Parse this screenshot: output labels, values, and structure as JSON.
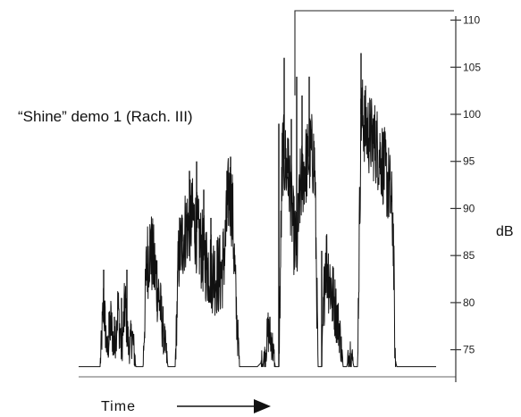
{
  "chart_data": {
    "type": "line",
    "title": "“Shine” demo 1 (Rach. III)",
    "xlabel": "Time",
    "ylabel": "dB",
    "ylim": [
      72.5,
      111
    ],
    "y_axis_position": "right",
    "grid": false,
    "y_ticks": [
      75,
      80,
      85,
      90,
      95,
      100,
      105,
      110
    ],
    "y_tick_labels": [
      "75",
      "80",
      "85",
      "90",
      "95",
      "100",
      "105",
      "110"
    ],
    "series": [
      {
        "envelope": [
          [
            0.0,
            73.2
          ],
          [
            0.06,
            73.2
          ],
          [
            0.07,
            80.0
          ],
          [
            0.08,
            74.5
          ],
          [
            0.09,
            78.0
          ],
          [
            0.1,
            75.0
          ],
          [
            0.11,
            79.5
          ],
          [
            0.12,
            74.8
          ],
          [
            0.13,
            80.0
          ],
          [
            0.14,
            75.2
          ],
          [
            0.15,
            76.5
          ],
          [
            0.16,
            73.2
          ],
          [
            0.18,
            73.2
          ],
          [
            0.19,
            84.0
          ],
          [
            0.2,
            86.0
          ],
          [
            0.22,
            82.0
          ],
          [
            0.24,
            76.0
          ],
          [
            0.25,
            73.2
          ],
          [
            0.27,
            73.2
          ],
          [
            0.28,
            85.0
          ],
          [
            0.3,
            88.0
          ],
          [
            0.32,
            89.0
          ],
          [
            0.34,
            86.0
          ],
          [
            0.36,
            84.0
          ],
          [
            0.38,
            83.0
          ],
          [
            0.4,
            83.0
          ],
          [
            0.41,
            86.0
          ],
          [
            0.42,
            92.0
          ],
          [
            0.43,
            90.0
          ],
          [
            0.44,
            80.0
          ],
          [
            0.45,
            73.2
          ],
          [
            0.5,
            73.2
          ],
          [
            0.52,
            74.0
          ],
          [
            0.53,
            77.0
          ],
          [
            0.54,
            76.0
          ],
          [
            0.55,
            73.2
          ],
          [
            0.56,
            73.2
          ],
          [
            0.57,
            96.0
          ],
          [
            0.59,
            93.0
          ],
          [
            0.6,
            88.0
          ],
          [
            0.61,
            85.0
          ],
          [
            0.62,
            92.0
          ],
          [
            0.63,
            94.0
          ],
          [
            0.64,
            95.0
          ],
          [
            0.65,
            96.0
          ],
          [
            0.66,
            95.0
          ],
          [
            0.67,
            73.2
          ],
          [
            0.68,
            73.2
          ],
          [
            0.69,
            85.0
          ],
          [
            0.71,
            81.0
          ],
          [
            0.73,
            77.0
          ],
          [
            0.74,
            73.2
          ],
          [
            0.75,
            73.2
          ],
          [
            0.76,
            75.0
          ],
          [
            0.77,
            73.2
          ],
          [
            0.78,
            73.2
          ],
          [
            0.79,
            100.0
          ],
          [
            0.81,
            98.0
          ],
          [
            0.83,
            97.0
          ],
          [
            0.85,
            95.0
          ],
          [
            0.87,
            92.0
          ],
          [
            0.88,
            88.0
          ],
          [
            0.885,
            74.0
          ],
          [
            0.89,
            73.2
          ],
          [
            0.97,
            73.2
          ],
          [
            1.0,
            73.2
          ]
        ],
        "spikes": [
          [
            0.07,
            83.5
          ],
          [
            0.085,
            79.0
          ],
          [
            0.1,
            78.5
          ],
          [
            0.12,
            80.5
          ],
          [
            0.135,
            83.5
          ],
          [
            0.15,
            77.0
          ],
          [
            0.195,
            85.0
          ],
          [
            0.21,
            84.5
          ],
          [
            0.29,
            89.0
          ],
          [
            0.31,
            94.0
          ],
          [
            0.33,
            95.0
          ],
          [
            0.35,
            92.0
          ],
          [
            0.37,
            89.0
          ],
          [
            0.415,
            94.0
          ],
          [
            0.425,
            95.5
          ],
          [
            0.535,
            78.5
          ],
          [
            0.56,
            99.0
          ],
          [
            0.575,
            106.0
          ],
          [
            0.585,
            97.5
          ],
          [
            0.595,
            99.5
          ],
          [
            0.61,
            104.0
          ],
          [
            0.625,
            102.0
          ],
          [
            0.645,
            104.0
          ],
          [
            0.66,
            95.0
          ],
          [
            0.68,
            85.5
          ],
          [
            0.71,
            78.0
          ],
          [
            0.72,
            77.5
          ],
          [
            0.79,
            106.5
          ],
          [
            0.8,
            102.0
          ],
          [
            0.815,
            100.0
          ]
        ],
        "overload_bracket": {
          "x_start": 0.605,
          "x_end": 1.0,
          "y": 111
        }
      }
    ]
  }
}
